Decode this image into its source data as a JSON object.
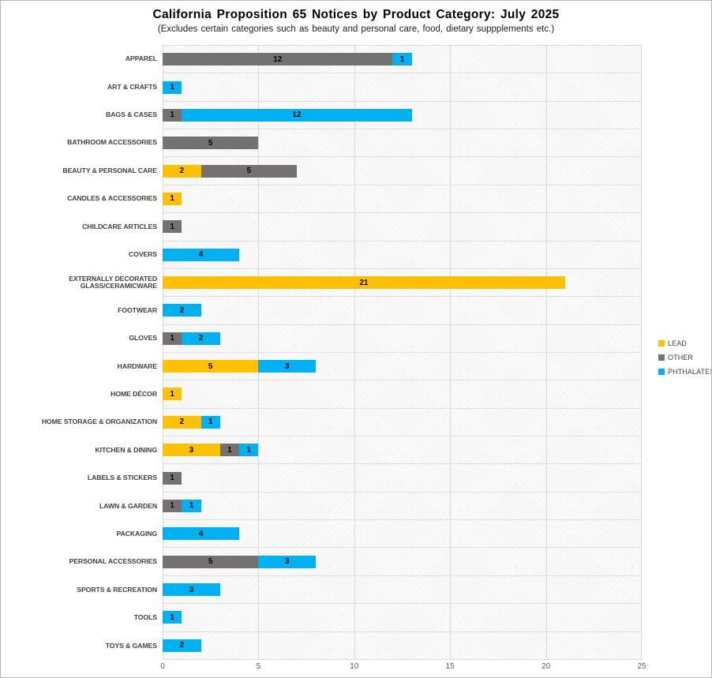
{
  "title": "California Proposition 65 Notices by Product Category: July 2025",
  "subtitle": "(Excludes certain categories such as beauty and personal care, food, dietary suppplements etc.)",
  "legend": [
    {
      "label": "LEAD",
      "color": "#FFC000"
    },
    {
      "label": "OTHER",
      "color": "#767171"
    },
    {
      "label": "PHTHALATES",
      "color": "#00B0F0"
    }
  ],
  "x_axis": {
    "ticks": [
      0,
      5,
      10,
      15,
      20,
      25
    ],
    "max": 25
  },
  "chart_data": {
    "type": "bar",
    "orientation": "horizontal",
    "stacked": true,
    "title": "California Proposition 65 Notices by Product Category: July 2025",
    "subtitle": "(Excludes certain categories such as beauty and personal care, food, dietary suppplements etc.)",
    "xlabel": "",
    "ylabel": "",
    "xlim": [
      0,
      25
    ],
    "grid": true,
    "legend_position": "right",
    "data_labels": true,
    "categories": [
      "APPAREL",
      "ART & CRAFTS",
      "BAGS & CASES",
      "BATHROOM ACCESSORIES",
      "BEAUTY & PERSONAL CARE",
      "CANDLES & ACCESSORIES",
      "CHILDCARE ARTICLES",
      "COVERS",
      "EXTERNALLY DECORATED GLASS/CERAMICWARE",
      "FOOTWEAR",
      "GLOVES",
      "HARDWARE",
      "HOME DÉCOR",
      "HOME STORAGE & ORGANIZATION",
      "KITCHEN & DINING",
      "LABELS & STICKERS",
      "LAWN & GARDEN",
      "PACKAGING",
      "PERSONAL ACCESSORIES",
      "SPORTS & RECREATION",
      "TOOLS",
      "TOYS & GAMES"
    ],
    "series": [
      {
        "name": "LEAD",
        "color": "#FFC000",
        "values": [
          0,
          0,
          0,
          0,
          2,
          1,
          0,
          0,
          21,
          0,
          0,
          5,
          1,
          2,
          3,
          0,
          0,
          0,
          0,
          0,
          0,
          0
        ]
      },
      {
        "name": "OTHER",
        "color": "#767171",
        "values": [
          12,
          0,
          1,
          5,
          5,
          0,
          1,
          0,
          0,
          0,
          1,
          0,
          0,
          0,
          1,
          1,
          1,
          0,
          5,
          0,
          0,
          0
        ]
      },
      {
        "name": "PHTHALATES",
        "color": "#00B0F0",
        "values": [
          1,
          1,
          12,
          0,
          0,
          0,
          0,
          4,
          0,
          2,
          2,
          3,
          0,
          1,
          1,
          0,
          1,
          4,
          3,
          3,
          1,
          2
        ]
      }
    ]
  }
}
